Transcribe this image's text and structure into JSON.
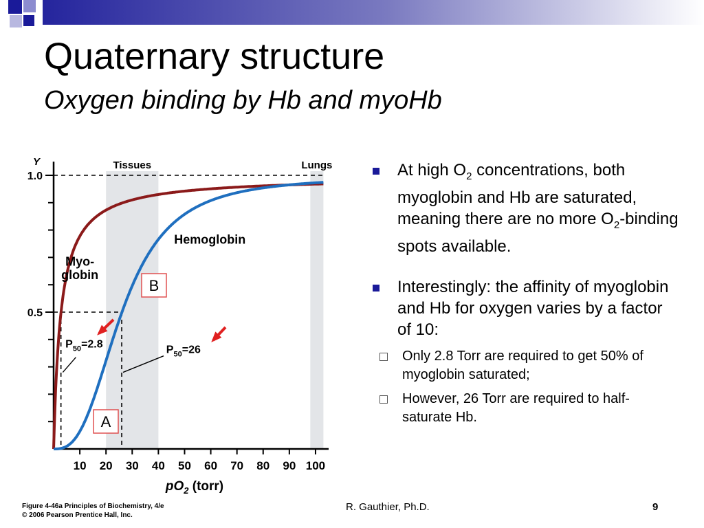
{
  "slide": {
    "title": "Quaternary structure",
    "subtitle": "Oxygen binding by Hb and myoHb",
    "author": "R. Gauthier, Ph.D.",
    "page_number": "9",
    "credit_line1": "Figure 4-46a  Principles of Biochemistry, 4/e",
    "credit_line2": "© 2006 Pearson Prentice Hall, Inc."
  },
  "bullets": {
    "b1_a": "At high O",
    "b1_sub": "2",
    "b1_b": " concentrations, both myoglobin and Hb are saturated, meaning there are no more O",
    "b1_sub2": "2",
    "b1_c": "-binding spots available.",
    "b2": "Interestingly: the affinity of myoglobin and Hb for oxygen varies by a factor of 10:",
    "sub1": "Only 2.8 Torr are required to get 50% of myoglobin saturated;",
    "sub2": "However, 26 Torr are required to half-saturate Hb."
  },
  "colors": {
    "myoglobin": "#8b1a1a",
    "hemoglobin": "#1f6fbf",
    "shade": "#e3e5e8",
    "arrow": "#e02020",
    "box": "#e05050",
    "bullet": "#1a1a99"
  },
  "chart_data": {
    "type": "line",
    "xlabel_main": "pO",
    "xlabel_sub": "2",
    "xlabel_unit": " (torr)",
    "ylabel": "Y",
    "xlim": [
      0,
      105
    ],
    "ylim": [
      0,
      1.0
    ],
    "x_ticks": [
      10,
      20,
      30,
      40,
      50,
      60,
      70,
      80,
      90,
      100
    ],
    "y_tick_labels": [
      {
        "y": 0.5,
        "label": "0.5"
      },
      {
        "y": 1.0,
        "label": "1.0"
      }
    ],
    "series": [
      {
        "name_line1": "Myo-",
        "name_line2": "globin",
        "p50": 2.8,
        "hill_n": 1.0,
        "x_end": 103
      },
      {
        "name": "Hemoglobin",
        "p50": 26,
        "hill_n": 2.8,
        "x_end": 103
      }
    ],
    "regions": [
      {
        "label": "Tissues",
        "x": [
          20,
          40
        ]
      },
      {
        "label": "Lungs",
        "x": [
          98,
          103
        ]
      }
    ],
    "annotations": {
      "p50_myo": "=2.8",
      "p50_hb": "=26",
      "p_main": "P",
      "p_sub": "50",
      "box_a": "A",
      "box_b": "B"
    }
  }
}
